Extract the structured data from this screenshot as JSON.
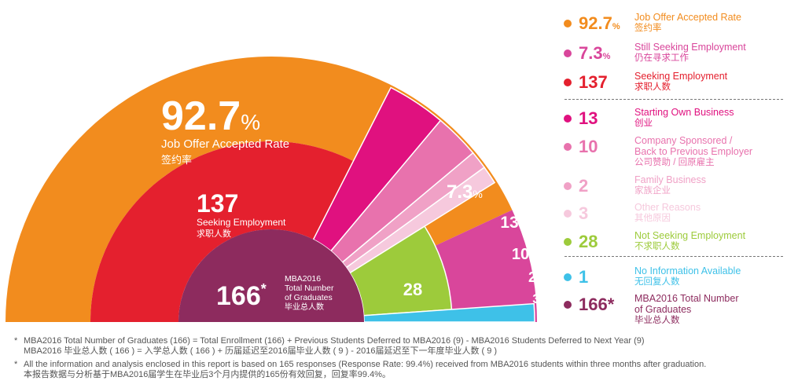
{
  "chart_data": {
    "type": "pie",
    "title": "",
    "total_label": {
      "value": "166",
      "mark": "*",
      "en_lines": [
        "MBA2016",
        "Total Number",
        "of Graduates"
      ],
      "cn": "毕业总人数"
    },
    "outer_ring": [
      {
        "key": "accepted",
        "value": 92.7,
        "display": "92.7",
        "unit": "%",
        "en": "Job Offer Accepted Rate",
        "cn": "签约率",
        "color": "#F28C1E"
      },
      {
        "key": "still_seeking",
        "value": 7.3,
        "display": "7.3",
        "unit": "%",
        "color": "#D9469B"
      }
    ],
    "middle_ring": {
      "key": "seeking",
      "value": 137,
      "display": "137",
      "en": "Seeking Employment",
      "cn": "求职人数",
      "color": "#E4202E"
    },
    "slices": [
      {
        "key": "own_business",
        "value": 13,
        "display": "13",
        "color": "#E0117F"
      },
      {
        "key": "company_sponsored",
        "value": 10,
        "display": "10",
        "color": "#E872AD"
      },
      {
        "key": "family",
        "value": 2,
        "display": "2",
        "color": "#F0A1C6"
      },
      {
        "key": "other",
        "value": 3,
        "display": "3",
        "color": "#F6C9DD"
      },
      {
        "key": "not_seeking",
        "value": 28,
        "display": "28",
        "color": "#9DCB3B"
      },
      {
        "key": "no_info",
        "value": 1,
        "display": "1",
        "color": "#3EC1E8"
      }
    ],
    "center_color": "#8D2B5E"
  },
  "legend": [
    {
      "value": "92.7",
      "unit": "%",
      "en": "Job Offer Accepted Rate",
      "cn": "签约率",
      "color": "#F28C1E"
    },
    {
      "value": "7.3",
      "unit": "%",
      "en": "Still Seeking Employment",
      "cn": "仍在寻求工作",
      "color": "#D9469B"
    },
    {
      "value": "137",
      "unit": "",
      "en": "Seeking Employment",
      "cn": "求职人数",
      "color": "#E4202E"
    },
    {
      "value": "13",
      "unit": "",
      "en": "Starting Own Business",
      "cn": "创业",
      "color": "#E0117F"
    },
    {
      "value": "10",
      "unit": "",
      "en": "Company Sponsored /\nBack to Previous Employer",
      "cn": "公司赞助 / 回原雇主",
      "color": "#E872AD"
    },
    {
      "value": "2",
      "unit": "",
      "en": "Family Business",
      "cn": "家族企业",
      "color": "#F0A1C6"
    },
    {
      "value": "3",
      "unit": "",
      "en": "Other Reasons",
      "cn": "其他原因",
      "color": "#F6C9DD"
    },
    {
      "value": "28",
      "unit": "",
      "en": "Not Seeking Employment",
      "cn": "不求职人数",
      "color": "#9DCB3B"
    },
    {
      "value": "1",
      "unit": "",
      "en": "No Information Available",
      "cn": "无回复人数",
      "color": "#3EC1E8"
    },
    {
      "value": "166*",
      "unit": "",
      "en": "MBA2016 Total Number\nof Graduates",
      "cn": "毕业总人数",
      "color": "#8D2B5E"
    }
  ],
  "footnotes": [
    {
      "mark": "*",
      "lines": [
        "MBA2016 Total Number of Graduates (166) =  Total Enrollment (166) + Previous Students Deferred to MBA2016 (9) - MBA2016 Students Deferred to Next Year (9)",
        "MBA2016 毕业总人数 ( 166 ) = 入学总人数 ( 166 ) + 历届延迟至2016届毕业人数 ( 9 ) - 2016届延迟至下一年度毕业人数 ( 9 )"
      ]
    },
    {
      "mark": "*",
      "lines": [
        "All the information and analysis enclosed in this report is based on 165 responses (Response Rate:  99.4%) received from MBA2016 students within three months after graduation.",
        "本报告数据与分析基于MBA2016届学生在毕业后3个月内提供的165份有效回复，回复率99.4%。"
      ]
    }
  ]
}
